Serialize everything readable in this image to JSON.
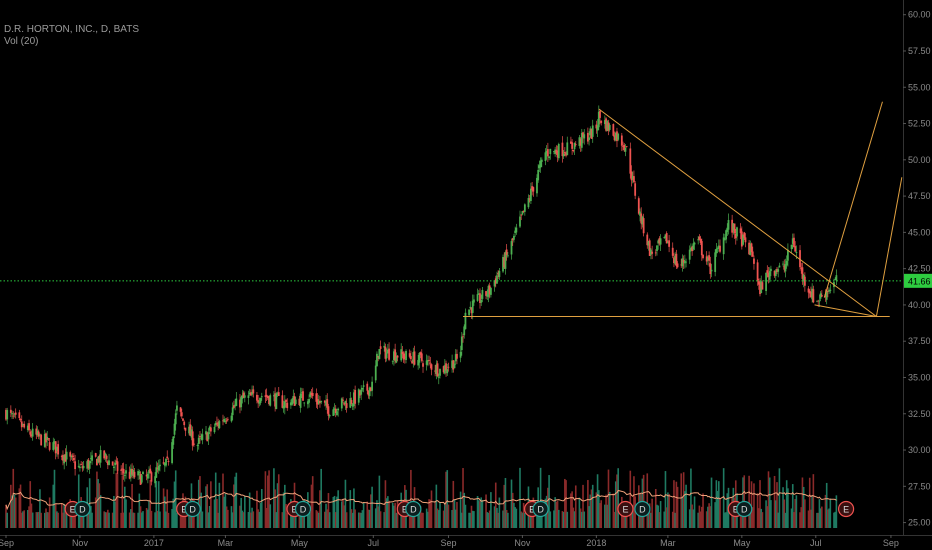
{
  "header": {
    "symbol_line": "D.R. HORTON, INC., D, BATS",
    "volume_line": "Vol (20)"
  },
  "chart_data": {
    "type": "candlestick",
    "title": "D.R. HORTON, INC., D, BATS",
    "indicator": "Vol (20)",
    "y_axis": {
      "range": [
        23.8,
        60.6
      ],
      "ticks": [
        "60.00",
        "57.50",
        "55.00",
        "52.50",
        "50.00",
        "47.50",
        "45.00",
        "42.50",
        "40.00",
        "37.50",
        "35.00",
        "32.50",
        "30.00",
        "27.50",
        "25.00"
      ]
    },
    "x_axis": {
      "range": [
        "2016-09-01",
        "2018-09-01"
      ],
      "ticks": [
        "Sep",
        "Nov",
        "2017",
        "Mar",
        "May",
        "Jul",
        "Sep",
        "Nov",
        "2018",
        "Mar",
        "May",
        "Jul",
        "Sep"
      ]
    },
    "current_price": "41.66",
    "price_path": [
      [
        "2016-09-01",
        32.6
      ],
      [
        "2016-09-20",
        31.2
      ],
      [
        "2016-10-10",
        30.3
      ],
      [
        "2016-11-01",
        28.7
      ],
      [
        "2016-11-20",
        29.6
      ],
      [
        "2016-12-05",
        28.5
      ],
      [
        "2016-12-25",
        28.0
      ],
      [
        "2017-01-12",
        29.0
      ],
      [
        "2017-01-20",
        32.8
      ],
      [
        "2017-02-05",
        30.3
      ],
      [
        "2017-02-25",
        32.0
      ],
      [
        "2017-03-15",
        33.5
      ],
      [
        "2017-04-01",
        33.8
      ],
      [
        "2017-04-20",
        33.2
      ],
      [
        "2017-05-10",
        33.8
      ],
      [
        "2017-05-25",
        32.8
      ],
      [
        "2017-06-15",
        33.5
      ],
      [
        "2017-07-01",
        34.5
      ],
      [
        "2017-07-05",
        36.8
      ],
      [
        "2017-07-20",
        36.6
      ],
      [
        "2017-08-10",
        36.2
      ],
      [
        "2017-08-25",
        35.5
      ],
      [
        "2017-09-10",
        36.3
      ],
      [
        "2017-09-15",
        39.5
      ],
      [
        "2017-10-05",
        41.0
      ],
      [
        "2017-10-20",
        43.5
      ],
      [
        "2017-11-05",
        47.0
      ],
      [
        "2017-11-20",
        50.5
      ],
      [
        "2017-12-10",
        50.8
      ],
      [
        "2017-12-31",
        52.0
      ],
      [
        "2018-01-03",
        53.0
      ],
      [
        "2018-01-25",
        51.0
      ],
      [
        "2018-02-05",
        46.5
      ],
      [
        "2018-02-15",
        43.5
      ],
      [
        "2018-02-28",
        44.5
      ],
      [
        "2018-03-10",
        42.5
      ],
      [
        "2018-03-25",
        44.5
      ],
      [
        "2018-04-05",
        42.5
      ],
      [
        "2018-04-20",
        45.5
      ],
      [
        "2018-05-01",
        44.5
      ],
      [
        "2018-05-10",
        43.5
      ],
      [
        "2018-05-15",
        41.0
      ],
      [
        "2018-05-25",
        42.5
      ],
      [
        "2018-06-05",
        42.5
      ],
      [
        "2018-06-12",
        44.5
      ],
      [
        "2018-06-20",
        42.0
      ],
      [
        "2018-07-01",
        40.2
      ],
      [
        "2018-07-10",
        41.0
      ],
      [
        "2018-07-18",
        41.66
      ]
    ],
    "volume_moving_average_length": 20,
    "events": [
      {
        "date": "2016-10-26",
        "label": "E"
      },
      {
        "date": "2016-11-03",
        "label": "D"
      },
      {
        "date": "2017-01-26",
        "label": "E"
      },
      {
        "date": "2017-02-02",
        "label": "D"
      },
      {
        "date": "2017-04-27",
        "label": "E"
      },
      {
        "date": "2017-05-04",
        "label": "D"
      },
      {
        "date": "2017-07-27",
        "label": "E"
      },
      {
        "date": "2017-08-03",
        "label": "D"
      },
      {
        "date": "2017-11-09",
        "label": "E"
      },
      {
        "date": "2017-11-16",
        "label": "D"
      },
      {
        "date": "2018-01-25",
        "label": "E"
      },
      {
        "date": "2018-02-08",
        "label": "D"
      },
      {
        "date": "2018-04-26",
        "label": "E"
      },
      {
        "date": "2018-05-03",
        "label": "D"
      },
      {
        "date": "2018-07-26",
        "label": "E"
      }
    ],
    "drawings": [
      {
        "type": "horizontal-line",
        "price": 41.66,
        "color": "#2ecc40",
        "style": "dotted"
      },
      {
        "type": "trend-line",
        "from": [
          "2017-09-13",
          39.2
        ],
        "to": [
          "2018-08-31",
          39.2
        ],
        "color": "#e0a040"
      },
      {
        "type": "trend-line",
        "from": [
          "2018-01-03",
          53.5
        ],
        "to": [
          "2018-08-20",
          39.2
        ],
        "color": "#e0a040"
      },
      {
        "type": "trend-line",
        "from": [
          "2018-06-30",
          40.0
        ],
        "to": [
          "2018-08-20",
          39.2
        ],
        "color": "#e0a040"
      },
      {
        "type": "trend-line",
        "from": [
          "2018-08-20",
          39.2
        ],
        "to": [
          "2018-09-10",
          48.8
        ],
        "color": "#e0a040"
      },
      {
        "type": "trend-line",
        "from": [
          "2018-07-08",
          40.5
        ],
        "to": [
          "2018-08-25",
          54.0
        ],
        "color": "#e0a040"
      }
    ],
    "colors": {
      "up": "#26a69a",
      "down": "#ef5350",
      "up_body": "#4caf50",
      "volume_up": "#1f7a62",
      "volume_down": "#8b2a2a",
      "volume_ma": "#f0a27a",
      "drawing": "#e0a040",
      "price_line": "#2ecc40",
      "background": "#000000",
      "event_fill": "#3a1010"
    },
    "grid": false
  }
}
